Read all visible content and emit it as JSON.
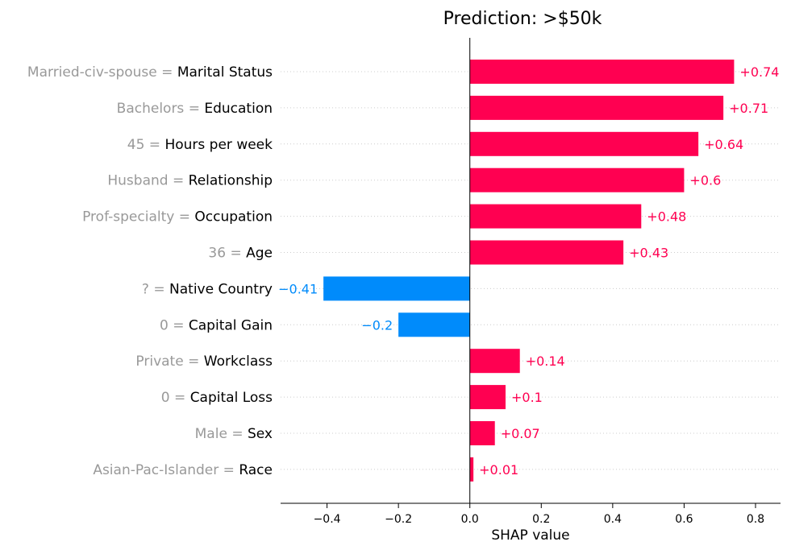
{
  "chart_data": {
    "type": "bar",
    "orientation": "horizontal",
    "title": "Prediction: >$50k",
    "xlabel": "SHAP value",
    "xlim": [
      -0.53,
      0.87
    ],
    "xticks": [
      -0.4,
      -0.2,
      0.0,
      0.2,
      0.4,
      0.6,
      0.8
    ],
    "xtick_labels": [
      "−0.4",
      "−0.2",
      "0.0",
      "0.2",
      "0.4",
      "0.6",
      "0.8"
    ],
    "grid": "dotted horizontal row guides",
    "colors": {
      "positive": "#ff0051",
      "negative": "#008bfb",
      "feature_value": "#999999",
      "feature_name": "#000000"
    },
    "rows": [
      {
        "feature_value": "Married-civ-spouse",
        "feature": "Marital Status",
        "shap": 0.74,
        "label": "+0.74"
      },
      {
        "feature_value": "Bachelors",
        "feature": "Education",
        "shap": 0.71,
        "label": "+0.71"
      },
      {
        "feature_value": "45",
        "feature": "Hours per week",
        "shap": 0.64,
        "label": "+0.64"
      },
      {
        "feature_value": "Husband",
        "feature": "Relationship",
        "shap": 0.6,
        "label": "+0.6"
      },
      {
        "feature_value": "Prof-specialty",
        "feature": "Occupation",
        "shap": 0.48,
        "label": "+0.48"
      },
      {
        "feature_value": "36",
        "feature": "Age",
        "shap": 0.43,
        "label": "+0.43"
      },
      {
        "feature_value": "?",
        "feature": "Native Country",
        "shap": -0.41,
        "label": "−0.41"
      },
      {
        "feature_value": "0",
        "feature": "Capital Gain",
        "shap": -0.2,
        "label": "−0.2"
      },
      {
        "feature_value": "Private",
        "feature": "Workclass",
        "shap": 0.14,
        "label": "+0.14"
      },
      {
        "feature_value": "0",
        "feature": "Capital Loss",
        "shap": 0.1,
        "label": "+0.1"
      },
      {
        "feature_value": "Male",
        "feature": "Sex",
        "shap": 0.07,
        "label": "+0.07"
      },
      {
        "feature_value": "Asian-Pac-Islander",
        "feature": "Race",
        "shap": 0.01,
        "label": "+0.01"
      }
    ]
  }
}
